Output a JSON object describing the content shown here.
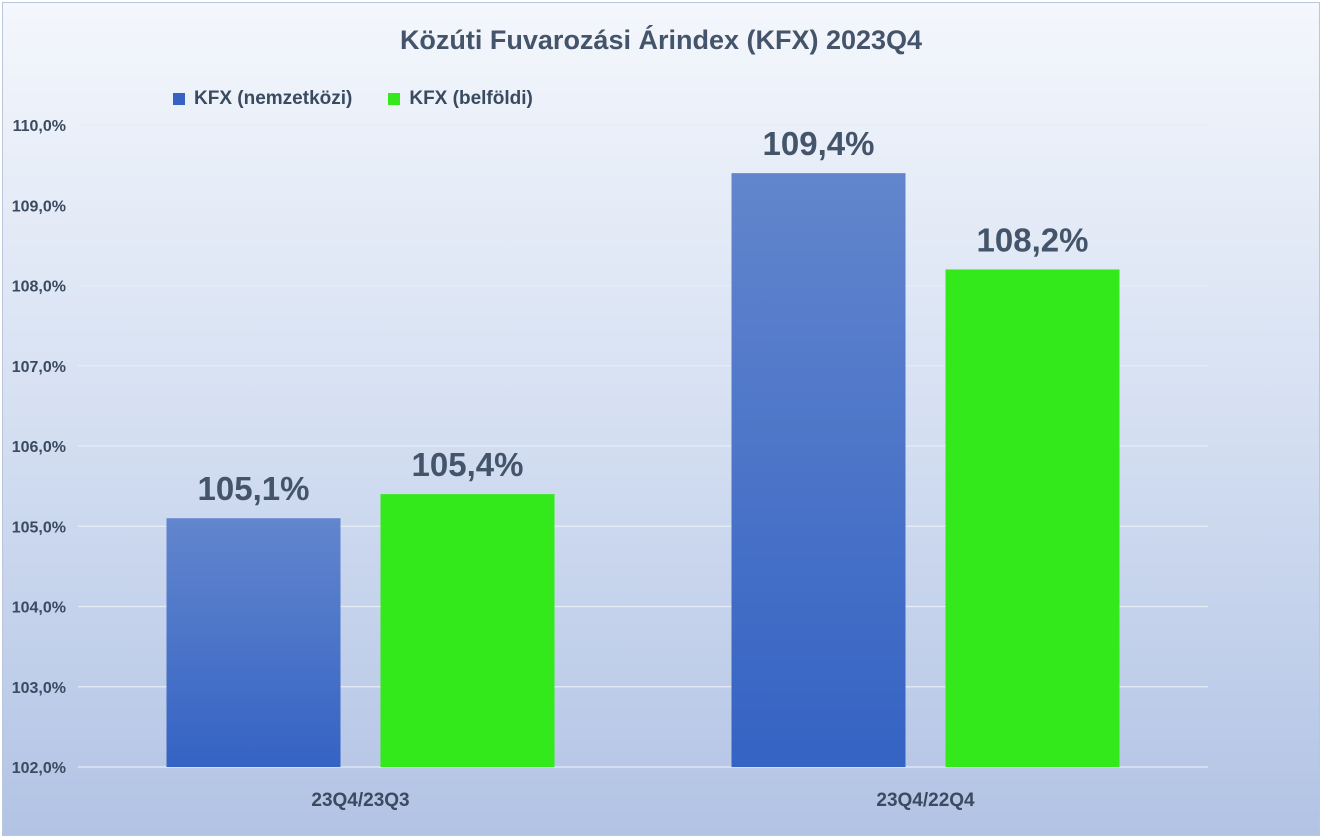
{
  "chart_data": {
    "type": "bar",
    "title": "Közúti Fuvarozási Árindex (KFX) 2023Q4",
    "xlabel": "",
    "ylabel": "",
    "categories": [
      "23Q4/23Q3",
      "23Q4/22Q4"
    ],
    "series": [
      {
        "name": "KFX (nemzetközi)",
        "values": [
          105.1,
          109.4
        ],
        "labels": [
          "105,1%",
          "109,4%"
        ],
        "color": "#3563c4",
        "color_top": "#6286cd"
      },
      {
        "name": "KFX (belföldi)",
        "values": [
          105.4,
          108.2
        ],
        "labels": [
          "105,4%",
          "108,2%"
        ],
        "color": "#33e91b",
        "color_top": "#33e91b"
      }
    ],
    "ylim": [
      102,
      110
    ],
    "yticks": [
      102,
      103,
      104,
      105,
      106,
      107,
      108,
      109,
      110
    ],
    "ytick_labels": [
      "102,0%",
      "103,0%",
      "104,0%",
      "105,0%",
      "106,0%",
      "107,0%",
      "108,0%",
      "109,0%",
      "110,0%"
    ],
    "grid": true,
    "legend_position": "top-left"
  }
}
